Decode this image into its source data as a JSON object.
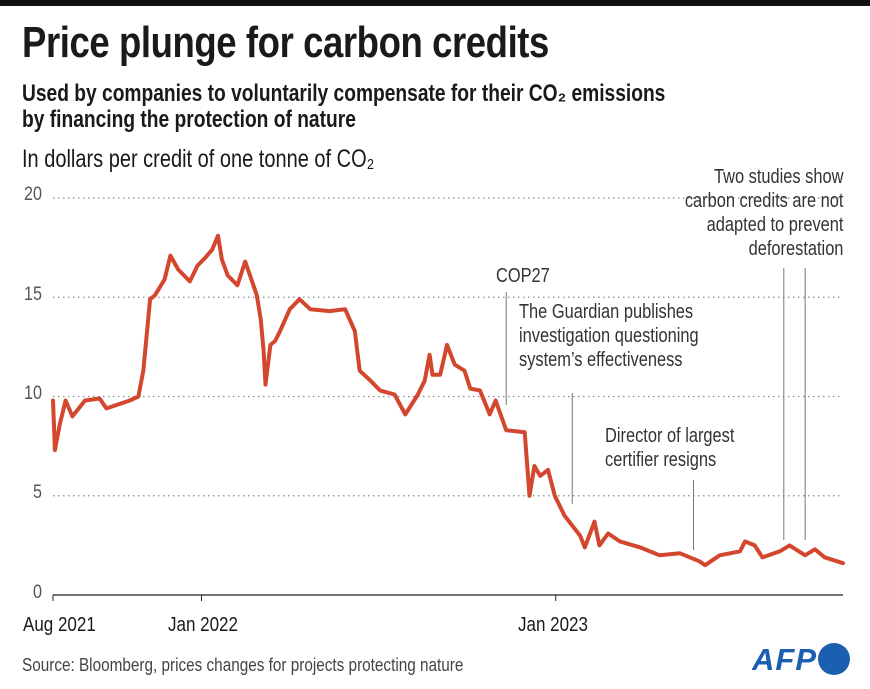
{
  "header": {
    "title": "Price plunge for carbon credits",
    "subtitle_line1": "Used by companies to voluntarily compensate for their CO₂ emissions",
    "subtitle_line2": "by financing the protection of nature",
    "unit": "In dollars per credit of one tonne of CO₂"
  },
  "footer": {
    "source": "Source: Bloomberg, prices changes for projects protecting nature",
    "logo": "AFP"
  },
  "colors": {
    "line": "#d2472d",
    "text": "#1a1a1a",
    "grid": "#888888",
    "logo": "#1b5fb0"
  },
  "chart_data": {
    "type": "line",
    "title": "Price plunge for carbon credits",
    "ylabel": "In dollars per credit of one tonne of CO₂",
    "ylim": [
      0,
      20
    ],
    "yticks": [
      "0",
      "5",
      "10",
      "15",
      "20"
    ],
    "xticks": [
      {
        "date": "2021-08-01",
        "label": "Aug 2021"
      },
      {
        "date": "2022-01-01",
        "label": "Jan 2022"
      },
      {
        "date": "2023-01-01",
        "label": "Jan 2023"
      }
    ],
    "xlim": [
      "2021-08-01",
      "2023-10-24"
    ],
    "grid": "horizontal dotted",
    "series": [
      {
        "points": [
          [
            "2021-08-01",
            9.8
          ],
          [
            "2021-08-03",
            7.3
          ],
          [
            "2021-08-08",
            8.6
          ],
          [
            "2021-08-14",
            9.8
          ],
          [
            "2021-08-21",
            9.0
          ],
          [
            "2021-09-03",
            9.8
          ],
          [
            "2021-09-18",
            9.9
          ],
          [
            "2021-09-25",
            9.4
          ],
          [
            "2021-10-19",
            9.8
          ],
          [
            "2021-10-28",
            10.0
          ],
          [
            "2021-11-02",
            11.3
          ],
          [
            "2021-11-09",
            14.9
          ],
          [
            "2021-11-14",
            15.1
          ],
          [
            "2021-11-24",
            15.9
          ],
          [
            "2021-11-30",
            17.1
          ],
          [
            "2021-12-08",
            16.4
          ],
          [
            "2021-12-20",
            15.8
          ],
          [
            "2021-12-28",
            16.6
          ],
          [
            "2022-01-05",
            17.0
          ],
          [
            "2022-01-12",
            17.4
          ],
          [
            "2022-01-18",
            18.1
          ],
          [
            "2022-01-22",
            16.9
          ],
          [
            "2022-01-28",
            16.1
          ],
          [
            "2022-02-07",
            15.6
          ],
          [
            "2022-02-15",
            16.8
          ],
          [
            "2022-02-20",
            16.1
          ],
          [
            "2022-02-27",
            15.1
          ],
          [
            "2022-03-03",
            13.9
          ],
          [
            "2022-03-06",
            12.3
          ],
          [
            "2022-03-08",
            10.6
          ],
          [
            "2022-03-13",
            12.6
          ],
          [
            "2022-03-18",
            12.8
          ],
          [
            "2022-03-23",
            13.3
          ],
          [
            "2022-04-02",
            14.4
          ],
          [
            "2022-04-12",
            14.9
          ],
          [
            "2022-04-23",
            14.4
          ],
          [
            "2022-05-13",
            14.3
          ],
          [
            "2022-05-29",
            14.4
          ],
          [
            "2022-06-08",
            13.3
          ],
          [
            "2022-06-13",
            11.3
          ],
          [
            "2022-06-24",
            10.8
          ],
          [
            "2022-07-04",
            10.3
          ],
          [
            "2022-07-19",
            10.1
          ],
          [
            "2022-07-30",
            9.1
          ],
          [
            "2022-08-12",
            10.1
          ],
          [
            "2022-08-19",
            10.8
          ],
          [
            "2022-08-24",
            12.1
          ],
          [
            "2022-08-27",
            11.1
          ],
          [
            "2022-09-04",
            11.1
          ],
          [
            "2022-09-11",
            12.6
          ],
          [
            "2022-09-19",
            11.6
          ],
          [
            "2022-09-29",
            11.3
          ],
          [
            "2022-10-05",
            10.4
          ],
          [
            "2022-10-15",
            10.3
          ],
          [
            "2022-10-25",
            9.1
          ],
          [
            "2022-10-31",
            9.8
          ],
          [
            "2022-11-11",
            8.3
          ],
          [
            "2022-11-30",
            8.2
          ],
          [
            "2022-12-05",
            5.0
          ],
          [
            "2022-12-10",
            6.5
          ],
          [
            "2022-12-16",
            6.0
          ],
          [
            "2022-12-24",
            6.3
          ],
          [
            "2022-12-31",
            5.0
          ],
          [
            "2023-01-10",
            4.0
          ],
          [
            "2023-01-26",
            3.0
          ],
          [
            "2023-01-31",
            2.4
          ],
          [
            "2023-02-10",
            3.7
          ],
          [
            "2023-02-15",
            2.5
          ],
          [
            "2023-02-24",
            3.1
          ],
          [
            "2023-03-08",
            2.7
          ],
          [
            "2023-03-29",
            2.4
          ],
          [
            "2023-04-18",
            2.0
          ],
          [
            "2023-05-09",
            2.1
          ],
          [
            "2023-05-29",
            1.7
          ],
          [
            "2023-06-04",
            1.5
          ],
          [
            "2023-06-19",
            2.0
          ],
          [
            "2023-07-10",
            2.2
          ],
          [
            "2023-07-15",
            2.7
          ],
          [
            "2023-07-25",
            2.5
          ],
          [
            "2023-08-02",
            1.9
          ],
          [
            "2023-08-20",
            2.2
          ],
          [
            "2023-08-30",
            2.5
          ],
          [
            "2023-09-15",
            2.0
          ],
          [
            "2023-09-25",
            2.3
          ],
          [
            "2023-10-05",
            1.9
          ],
          [
            "2023-10-24",
            1.6
          ]
        ]
      }
    ],
    "annotations": [
      {
        "text": "COP27",
        "dates": [
          "2022-11-11"
        ]
      },
      {
        "text_lines": [
          "The Guardian publishes",
          "investigation questioning",
          "system’s effectiveness"
        ],
        "dates": [
          "2023-01-18"
        ]
      },
      {
        "text_lines": [
          "Director of largest",
          "certifier resigns"
        ],
        "dates": [
          "2023-05-23"
        ]
      },
      {
        "text_lines": [
          "Two studies show",
          "carbon credits are not",
          "adapted to prevent",
          "deforestation"
        ],
        "dates": [
          "2023-08-24",
          "2023-09-15"
        ]
      }
    ]
  }
}
